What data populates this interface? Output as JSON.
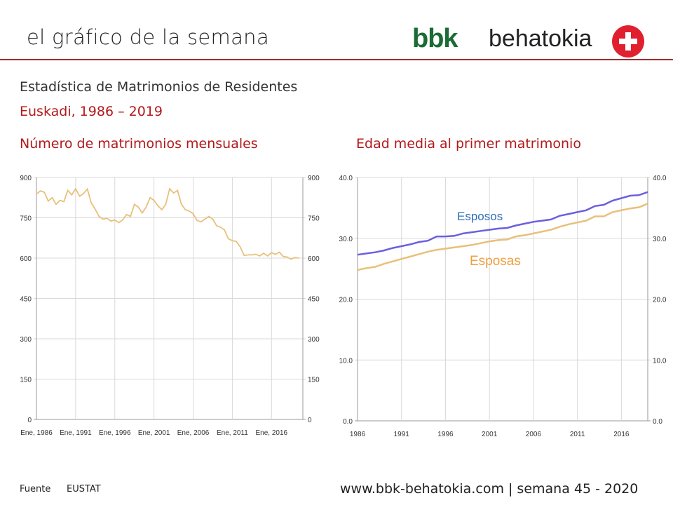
{
  "header": {
    "title": "el gráfico de la semana",
    "logo_text": "bbk behatokia"
  },
  "subtitle": "Estadística de Matrimonios de Residentes",
  "region_period": "Euskadi, 1986 – 2019",
  "footer": {
    "source_label": "Fuente",
    "source_value": "EUSTAT",
    "site": "www.bbk-behatokia.com | semana 45 - 2020"
  },
  "colors": {
    "accent_red": "#b3191b",
    "line_gold": "#e8c07a",
    "line_blue": "#6b5fe0",
    "label_blue": "#2e6fb7",
    "label_orange": "#f0a040",
    "grid": "#d9d9d9"
  },
  "chart_data": [
    {
      "type": "line",
      "title": "Número de matrimonios mensuales",
      "ylim": [
        0,
        900
      ],
      "yticks": [
        "0",
        "150",
        "300",
        "450",
        "600",
        "750",
        "900"
      ],
      "xlim": [
        1986,
        2020
      ],
      "xtick_labels": [
        "Ene, 1986",
        "Ene, 1991",
        "Ene, 1996",
        "Ene, 2001",
        "Ene, 2006",
        "Ene, 2011",
        "Ene, 2016"
      ],
      "xtick_years": [
        1986,
        1991,
        1996,
        2001,
        2006,
        2011,
        2016
      ],
      "series": [
        {
          "name": "Matrimonios mensuales",
          "color": "#e8c07a",
          "x": [
            1986,
            1986.5,
            1987,
            1987.5,
            1988,
            1988.5,
            1989,
            1989.5,
            1990,
            1990.5,
            1991,
            1991.5,
            1992,
            1992.5,
            1993,
            1993.5,
            1994,
            1994.5,
            1995,
            1995.5,
            1996,
            1996.5,
            1997,
            1997.5,
            1998,
            1998.5,
            1999,
            1999.5,
            2000,
            2000.5,
            2001,
            2001.5,
            2002,
            2002.5,
            2003,
            2003.5,
            2004,
            2004.5,
            2005,
            2005.5,
            2006,
            2006.5,
            2007,
            2007.5,
            2008,
            2008.5,
            2009,
            2009.5,
            2010,
            2010.5,
            2011,
            2011.5,
            2012,
            2012.5,
            2013,
            2013.5,
            2014,
            2014.5,
            2015,
            2015.5,
            2016,
            2016.5,
            2017,
            2017.5,
            2018,
            2018.5,
            2019,
            2019.5
          ],
          "values": [
            838,
            850,
            845,
            812,
            825,
            800,
            815,
            810,
            852,
            835,
            858,
            830,
            840,
            857,
            805,
            782,
            755,
            745,
            748,
            738,
            742,
            732,
            742,
            762,
            755,
            800,
            790,
            768,
            790,
            825,
            815,
            795,
            780,
            800,
            858,
            842,
            852,
            800,
            780,
            775,
            765,
            740,
            735,
            745,
            755,
            745,
            720,
            715,
            705,
            672,
            665,
            662,
            642,
            610,
            612,
            612,
            614,
            608,
            618,
            608,
            620,
            614,
            622,
            606,
            604,
            596,
            602,
            600
          ]
        }
      ]
    },
    {
      "type": "line",
      "title": "Edad media al primer matrimonio",
      "ylim": [
        0,
        40
      ],
      "yticks": [
        "0.0",
        "10.0",
        "20.0",
        "30.0",
        "40.0"
      ],
      "xlim": [
        1986,
        2019
      ],
      "xtick_labels": [
        "1986",
        "1991",
        "1996",
        "2001",
        "2006",
        "2011",
        "2016"
      ],
      "xtick_years": [
        1986,
        1991,
        1996,
        2001,
        2006,
        2011,
        2016
      ],
      "x": [
        1986,
        1987,
        1988,
        1989,
        1990,
        1991,
        1992,
        1993,
        1994,
        1995,
        1996,
        1997,
        1998,
        1999,
        2000,
        2001,
        2002,
        2003,
        2004,
        2005,
        2006,
        2007,
        2008,
        2009,
        2010,
        2011,
        2012,
        2013,
        2014,
        2015,
        2016,
        2017,
        2018,
        2019
      ],
      "series": [
        {
          "name": "Esposos",
          "color": "#6b5fe0",
          "label_color": "#2e6fb7",
          "values": [
            27.3,
            27.5,
            27.7,
            28.0,
            28.4,
            28.7,
            29.0,
            29.4,
            29.6,
            30.3,
            30.3,
            30.4,
            30.8,
            31.0,
            31.2,
            31.4,
            31.6,
            31.7,
            32.1,
            32.4,
            32.7,
            32.9,
            33.1,
            33.7,
            34.0,
            34.3,
            34.6,
            35.3,
            35.5,
            36.2,
            36.6,
            37.0,
            37.1,
            37.6
          ]
        },
        {
          "name": "Esposas",
          "color": "#e8c07a",
          "label_color": "#f0a040",
          "values": [
            24.8,
            25.1,
            25.3,
            25.8,
            26.2,
            26.6,
            27.0,
            27.4,
            27.8,
            28.1,
            28.3,
            28.5,
            28.7,
            28.9,
            29.2,
            29.5,
            29.7,
            29.8,
            30.3,
            30.5,
            30.8,
            31.1,
            31.4,
            31.9,
            32.3,
            32.6,
            32.9,
            33.6,
            33.6,
            34.3,
            34.6,
            34.9,
            35.1,
            35.7
          ]
        }
      ]
    }
  ]
}
